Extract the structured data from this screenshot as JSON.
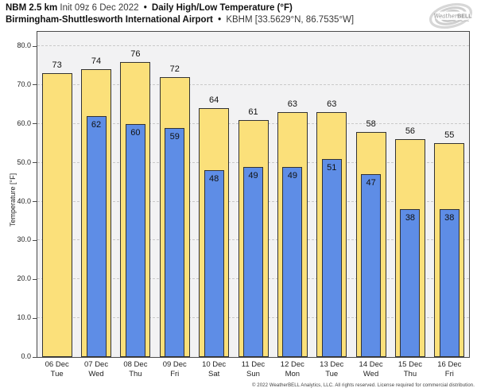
{
  "header": {
    "model": "NBM 2.5 km",
    "init": "Init 09z 6 Dec 2022",
    "separator": "•",
    "product": "Daily High/Low Temperature (°F)",
    "station": "Birmingham-Shuttlesworth International Airport",
    "station_id": "KBHM [33.5629°N, 86.7535°W]"
  },
  "logo": {
    "brand_weather": "Weather",
    "brand_bell": "BELL"
  },
  "footer": {
    "copyright": "© 2022 WeatherBELL Analytics, LLC. All rights reserved. License required for commercial distribution."
  },
  "chart_data": {
    "type": "bar",
    "title": "NBM 2.5 km Init 09z 6 Dec 2022 • Daily High/Low Temperature (°F)",
    "subtitle": "Birmingham-Shuttlesworth International Airport • KBHM [33.5629°N, 86.7535°W]",
    "ylabel": "Temperature [°F]",
    "categories": [
      {
        "date": "06 Dec",
        "day": "Tue"
      },
      {
        "date": "07 Dec",
        "day": "Wed"
      },
      {
        "date": "08 Dec",
        "day": "Thu"
      },
      {
        "date": "09 Dec",
        "day": "Fri"
      },
      {
        "date": "10 Dec",
        "day": "Sat"
      },
      {
        "date": "11 Dec",
        "day": "Sun"
      },
      {
        "date": "12 Dec",
        "day": "Mon"
      },
      {
        "date": "13 Dec",
        "day": "Tue"
      },
      {
        "date": "14 Dec",
        "day": "Wed"
      },
      {
        "date": "15 Dec",
        "day": "Thu"
      },
      {
        "date": "16 Dec",
        "day": "Fri"
      }
    ],
    "series": [
      {
        "name": "Daily High",
        "color": "#fbe07a",
        "values": [
          73,
          74,
          76,
          72,
          64,
          61,
          63,
          63,
          58,
          56,
          55
        ]
      },
      {
        "name": "Daily Low",
        "color": "#5e8de6",
        "values": [
          null,
          62,
          60,
          59,
          48,
          49,
          49,
          51,
          47,
          38,
          38
        ]
      }
    ],
    "y_ticks": [
      0,
      10,
      20,
      30,
      40,
      50,
      60,
      70,
      80
    ],
    "y_tick_labels": [
      "0.0",
      "10.0",
      "20.0",
      "30.0",
      "40.0",
      "50.0",
      "60.0",
      "70.0",
      "80.0"
    ],
    "ylim": [
      0,
      83.7
    ],
    "grid": "horizontal-dashed",
    "legend_position": "none",
    "colors": {
      "plot_background": "#f2f2f3",
      "grid_line": "#c9c9c9",
      "bar_edge": "#333333",
      "axis_spine": "#4a4a4a"
    }
  }
}
